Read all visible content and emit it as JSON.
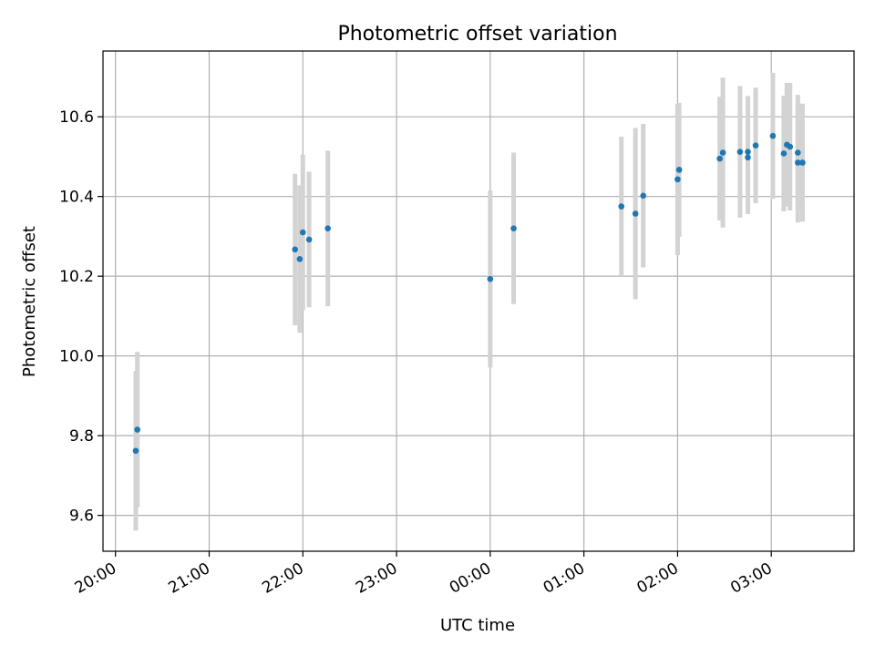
{
  "chart_data": {
    "type": "scatter",
    "title": "Photometric offset variation",
    "xlabel": "UTC time",
    "ylabel": "Photometric offset",
    "x_ticks": [
      "20:00",
      "21:00",
      "22:00",
      "23:00",
      "00:00",
      "01:00",
      "02:00",
      "03:00"
    ],
    "y_ticks": [
      "9.6",
      "9.8",
      "10.0",
      "10.2",
      "10.4",
      "10.6"
    ],
    "xlim_minutes": [
      -8,
      473
    ],
    "ylim": [
      9.51,
      10.765
    ],
    "grid": true,
    "colors": {
      "points": "#1f77b4",
      "errorbars": "#d3d3d3",
      "grid": "#b0b0b0"
    },
    "x_minutes_after_2000": [
      13,
      14,
      115,
      118,
      120,
      124,
      136,
      240,
      255,
      324,
      333,
      338,
      360,
      361,
      387,
      389,
      400,
      405,
      405,
      410,
      421,
      428,
      430,
      432,
      437,
      437,
      440
    ],
    "points": [
      {
        "x": "20:13",
        "y": 9.762,
        "err": 0.2
      },
      {
        "x": "20:14",
        "y": 9.815,
        "err": 0.195
      },
      {
        "x": "21:55",
        "y": 10.267,
        "err": 0.19
      },
      {
        "x": "21:58",
        "y": 10.243,
        "err": 0.185
      },
      {
        "x": "22:00",
        "y": 10.31,
        "err": 0.195
      },
      {
        "x": "22:04",
        "y": 10.292,
        "err": 0.17
      },
      {
        "x": "22:16",
        "y": 10.32,
        "err": 0.195
      },
      {
        "x": "00:00",
        "y": 10.193,
        "err": 0.222
      },
      {
        "x": "00:15",
        "y": 10.32,
        "err": 0.19
      },
      {
        "x": "01:24",
        "y": 10.375,
        "err": 0.175
      },
      {
        "x": "01:33",
        "y": 10.357,
        "err": 0.215
      },
      {
        "x": "01:38",
        "y": 10.402,
        "err": 0.18
      },
      {
        "x": "02:00",
        "y": 10.443,
        "err": 0.19
      },
      {
        "x": "02:01",
        "y": 10.467,
        "err": 0.168
      },
      {
        "x": "02:27",
        "y": 10.495,
        "err": 0.155
      },
      {
        "x": "02:29",
        "y": 10.51,
        "err": 0.188
      },
      {
        "x": "02:40",
        "y": 10.512,
        "err": 0.165
      },
      {
        "x": "02:45",
        "y": 10.498,
        "err": 0.142
      },
      {
        "x": "02:45",
        "y": 10.512,
        "err": 0.14
      },
      {
        "x": "02:50",
        "y": 10.528,
        "err": 0.145
      },
      {
        "x": "03:01",
        "y": 10.552,
        "err": 0.158
      },
      {
        "x": "03:08",
        "y": 10.508,
        "err": 0.145
      },
      {
        "x": "03:10",
        "y": 10.53,
        "err": 0.155
      },
      {
        "x": "03:12",
        "y": 10.525,
        "err": 0.16
      },
      {
        "x": "03:17",
        "y": 10.485,
        "err": 0.15
      },
      {
        "x": "03:17",
        "y": 10.51,
        "err": 0.145
      },
      {
        "x": "03:20",
        "y": 10.485,
        "err": 0.148
      }
    ]
  }
}
